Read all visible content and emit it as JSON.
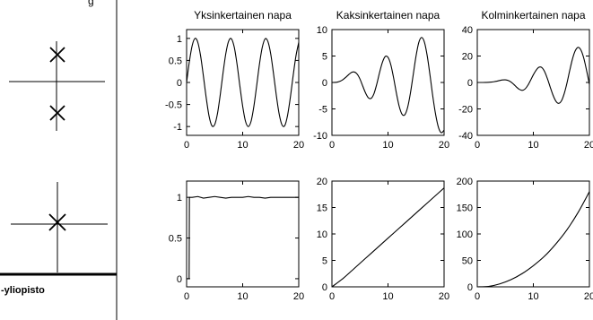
{
  "slide": {
    "top_partial_text": "g",
    "footer_text": "-yliopisto"
  },
  "pole_diagrams": [
    {
      "poles": [
        {
          "re": 0,
          "im": 1
        },
        {
          "re": 0,
          "im": -1
        }
      ]
    },
    {
      "poles": [
        {
          "re": 0,
          "im": 0
        }
      ]
    }
  ],
  "chart_data": [
    {
      "type": "line",
      "title": "Yksinkertainen napa",
      "xlim": [
        0,
        20
      ],
      "ylim": [
        -1.2,
        1.2
      ],
      "xticks": [
        0,
        10,
        20
      ],
      "yticks": [
        -1,
        -0.5,
        0,
        0.5,
        1
      ],
      "x": [
        0,
        0.5,
        1,
        1.5,
        2,
        2.5,
        3,
        3.5,
        4,
        4.5,
        5,
        5.5,
        6,
        6.5,
        7,
        7.5,
        8,
        8.5,
        9,
        9.5,
        10,
        10.5,
        11,
        11.5,
        12,
        12.5,
        13,
        13.5,
        14,
        14.5,
        15,
        15.5,
        16,
        16.5,
        17,
        17.5,
        18,
        18.5,
        19,
        19.5,
        20
      ],
      "series": [
        {
          "values": [
            0,
            0.48,
            0.84,
            1.0,
            0.91,
            0.6,
            0.14,
            -0.35,
            -0.76,
            -0.98,
            -0.96,
            -0.71,
            -0.28,
            0.22,
            0.66,
            0.94,
            0.99,
            0.8,
            0.41,
            -0.08,
            -0.54,
            -0.88,
            -1.0,
            -0.88,
            -0.54,
            -0.07,
            0.42,
            0.8,
            0.99,
            0.93,
            0.65,
            0.2,
            -0.29,
            -0.71,
            -0.96,
            -0.98,
            -0.75,
            -0.34,
            0.15,
            0.6,
            0.91
          ]
        }
      ]
    },
    {
      "type": "line",
      "title": "Kaksinkertainen napa",
      "xlim": [
        0,
        20
      ],
      "ylim": [
        -10,
        10
      ],
      "xticks": [
        0,
        10,
        20
      ],
      "yticks": [
        -10,
        -5,
        0,
        5,
        10
      ],
      "x": [
        0,
        0.5,
        1,
        1.5,
        2,
        2.5,
        3,
        3.5,
        4,
        4.5,
        5,
        5.5,
        6,
        6.5,
        7,
        7.5,
        8,
        8.5,
        9,
        9.5,
        10,
        10.5,
        11,
        11.5,
        12,
        12.5,
        13,
        13.5,
        14,
        14.5,
        15,
        15.5,
        16,
        16.5,
        17,
        17.5,
        18,
        18.5,
        19,
        19.5,
        20
      ],
      "series": [
        {
          "values": [
            0,
            0.01,
            0.08,
            0.25,
            0.57,
            1.0,
            1.5,
            1.9,
            1.98,
            1.58,
            0.65,
            -0.7,
            -2.0,
            -2.9,
            -3.0,
            -2.1,
            -0.3,
            1.9,
            3.8,
            4.9,
            4.75,
            3.35,
            0.86,
            -2.04,
            -4.53,
            -6.0,
            -6.1,
            -4.7,
            -2.0,
            1.5,
            5.0,
            7.6,
            8.5,
            7.6,
            5.0,
            1.3,
            -2.7,
            -6.1,
            -8.5,
            -9.5,
            -9.0
          ]
        }
      ]
    },
    {
      "type": "line",
      "title": "Kolminkertainen napa",
      "xlim": [
        0,
        20
      ],
      "ylim": [
        -40,
        40
      ],
      "xticks": [
        0,
        10,
        20
      ],
      "yticks": [
        -40,
        -20,
        0,
        20,
        40
      ],
      "x": [
        0,
        0.5,
        1,
        1.5,
        2,
        2.5,
        3,
        3.5,
        4,
        4.5,
        5,
        5.5,
        6,
        6.5,
        7,
        7.5,
        8,
        8.5,
        9,
        9.5,
        10,
        10.5,
        11,
        11.5,
        12,
        12.5,
        13,
        13.5,
        14,
        14.5,
        15,
        15.5,
        16,
        16.5,
        17,
        17.5,
        18,
        18.5,
        19,
        19.5,
        20
      ],
      "series": [
        {
          "values": [
            0,
            0,
            0,
            0.04,
            0.1,
            0.3,
            0.6,
            1.0,
            1.5,
            1.9,
            2.0,
            1.5,
            0.4,
            -1.4,
            -3.5,
            -5.2,
            -6.0,
            -5.0,
            -2.3,
            1.6,
            5.8,
            9.3,
            11.5,
            11.3,
            8.3,
            3.0,
            -3.4,
            -9.5,
            -14.0,
            -15.8,
            -14.0,
            -8.5,
            -0.4,
            9.3,
            18.1,
            24.2,
            26.6,
            24.4,
            18.3,
            9.0,
            -1.4
          ]
        }
      ]
    },
    {
      "type": "line",
      "xlim": [
        0,
        20
      ],
      "ylim": [
        -0.1,
        1.2
      ],
      "xticks": [
        0,
        10,
        20
      ],
      "yticks": [
        0,
        0.5,
        1
      ],
      "x": [
        0,
        0.45,
        0.5,
        1,
        2,
        3,
        4,
        5,
        6,
        7,
        8,
        9,
        10,
        11,
        12,
        13,
        14,
        15,
        16,
        17,
        18,
        19,
        20
      ],
      "series": [
        {
          "values": [
            0,
            0,
            1,
            1,
            1.01,
            0.99,
            1,
            1.01,
            1,
            0.99,
            1,
            1,
            1,
            1.01,
            1,
            1,
            0.99,
            1,
            1,
            1,
            1,
            1,
            1
          ]
        }
      ]
    },
    {
      "type": "line",
      "xlim": [
        0,
        20
      ],
      "ylim": [
        0,
        20
      ],
      "xticks": [
        0,
        10,
        20
      ],
      "yticks": [
        0,
        5,
        10,
        15,
        20
      ],
      "x": [
        0,
        2,
        4,
        6,
        8,
        10,
        12,
        14,
        16,
        18,
        20
      ],
      "series": [
        {
          "values": [
            0,
            1.6,
            3.5,
            5.4,
            7.3,
            9.2,
            11.1,
            13.0,
            14.9,
            16.8,
            18.7
          ]
        }
      ]
    },
    {
      "type": "line",
      "xlim": [
        0,
        20
      ],
      "ylim": [
        0,
        200
      ],
      "xticks": [
        0,
        10,
        20
      ],
      "yticks": [
        0,
        50,
        100,
        150,
        200
      ],
      "x": [
        0,
        2,
        4,
        6,
        8,
        10,
        12,
        14,
        16,
        18,
        20
      ],
      "series": [
        {
          "values": [
            0,
            0.8,
            5.5,
            13.5,
            25,
            40,
            58,
            81,
            108,
            141,
            180
          ]
        }
      ]
    }
  ]
}
